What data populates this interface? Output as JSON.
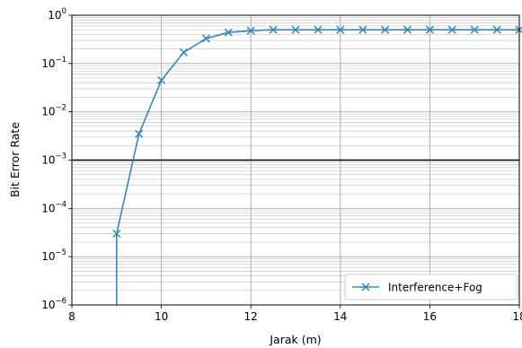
{
  "chart_data": {
    "type": "line",
    "xlabel": "Jarak (m)",
    "ylabel": "Bit Error Rate",
    "xlim": [
      8,
      18
    ],
    "ylim": [
      1e-06,
      1
    ],
    "yscale": "log",
    "grid": true,
    "legend_position": "bottom-right",
    "x_ticks": [
      "8",
      "10",
      "12",
      "14",
      "16",
      "18"
    ],
    "y_ticks": [
      {
        "base": "10",
        "exp": "0"
      },
      {
        "base": "10",
        "exp": "−1"
      },
      {
        "base": "10",
        "exp": "−2"
      },
      {
        "base": "10",
        "exp": "−3"
      },
      {
        "base": "10",
        "exp": "−4"
      },
      {
        "base": "10",
        "exp": "−5"
      },
      {
        "base": "10",
        "exp": "−6"
      }
    ],
    "reference_line": {
      "y": 0.001
    },
    "series": [
      {
        "name": "Interference+Fog",
        "color": "#3b87b3",
        "marker": "x",
        "x": [
          9,
          9.5,
          10,
          10.5,
          11,
          11.5,
          12,
          12.5,
          13,
          13.5,
          14,
          14.5,
          15,
          15.5,
          16,
          16.5,
          17,
          17.5,
          18
        ],
        "y": [
          3e-05,
          0.0035,
          0.045,
          0.17,
          0.33,
          0.44,
          0.48,
          0.5,
          0.5,
          0.5,
          0.5,
          0.5,
          0.5,
          0.5,
          0.5,
          0.5,
          0.5,
          0.5,
          0.5
        ],
        "drop_to_bottom_at_x": 9
      }
    ]
  }
}
